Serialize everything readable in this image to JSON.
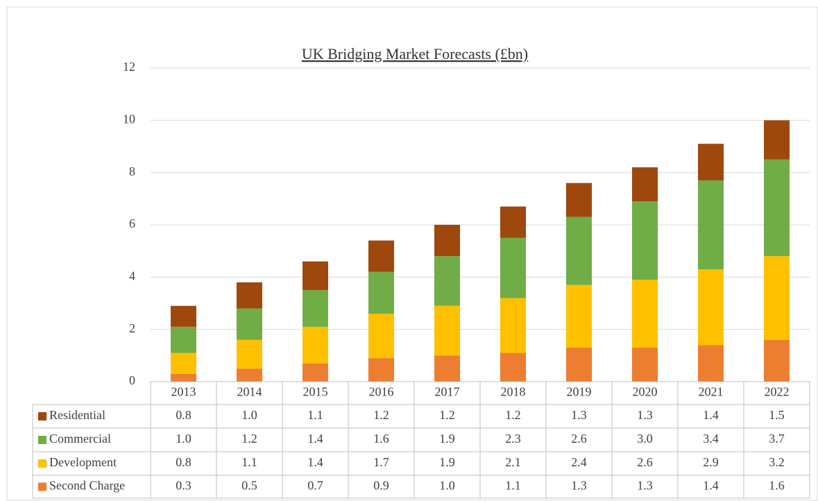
{
  "chart_data": {
    "type": "stacked_bar",
    "title": "UK Bridging Market Forecasts (£bn)",
    "categories": [
      "2013",
      "2014",
      "2015",
      "2016",
      "2017",
      "2018",
      "2019",
      "2020",
      "2021",
      "2022"
    ],
    "series": [
      {
        "name": "Residential",
        "color": "#9e480e",
        "values": [
          0.8,
          1,
          1.1,
          1.2,
          1.2,
          1.2,
          1.3,
          1.3,
          1.4,
          1.5
        ],
        "value_labels": [
          "0.8",
          "1.0",
          "1.1",
          "1.2",
          "1.2",
          "1.2",
          "1.3",
          "1.3",
          "1.4",
          "1.5"
        ]
      },
      {
        "name": "Commercial",
        "color": "#70ad47",
        "values": [
          1,
          1.2,
          1.4,
          1.6,
          1.9,
          2.3,
          2.6,
          3,
          3.4,
          3.7
        ],
        "value_labels": [
          "1.0",
          "1.2",
          "1.4",
          "1.6",
          "1.9",
          "2.3",
          "2.6",
          "3.0",
          "3.4",
          "3.7"
        ]
      },
      {
        "name": "Development",
        "color": "#ffc000",
        "values": [
          0.8,
          1.1,
          1.4,
          1.7,
          1.9,
          2.1,
          2.4,
          2.6,
          2.9,
          3.2
        ],
        "value_labels": [
          "0.8",
          "1.1",
          "1.4",
          "1.7",
          "1.9",
          "2.1",
          "2.4",
          "2.6",
          "2.9",
          "3.2"
        ]
      },
      {
        "name": "Second Charge",
        "color": "#ed7d31",
        "values": [
          0.3,
          0.5,
          0.7,
          0.9,
          1,
          1.1,
          1.3,
          1.3,
          1.4,
          1.6
        ],
        "value_labels": [
          "0.3",
          "0.5",
          "0.7",
          "0.9",
          "1.0",
          "1.1",
          "1.3",
          "1.3",
          "1.4",
          "1.6"
        ]
      }
    ],
    "ylim": [
      0,
      12
    ],
    "yticks": [
      0,
      2,
      4,
      6,
      8,
      10,
      12
    ],
    "grid": true
  }
}
